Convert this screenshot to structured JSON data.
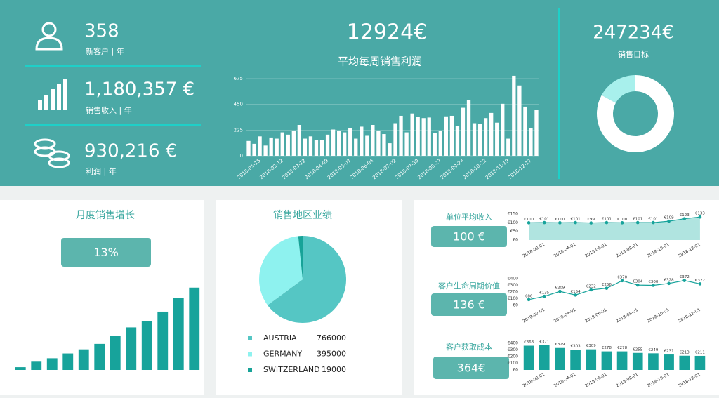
{
  "kpis": [
    {
      "value": "358",
      "label": "新客户 | 年"
    },
    {
      "value": "1,180,357 €",
      "label": "销售收入 | 年"
    },
    {
      "value": "930,216 €",
      "label": "利润 | 年"
    }
  ],
  "chart_data": [
    {
      "type": "bar",
      "headline": "12924€",
      "title": "平均每周销售利润",
      "categories": [
        null,
        null,
        "2018-01-15",
        null,
        null,
        null,
        "2018-02-12",
        null,
        null,
        null,
        "2018-03-12",
        null,
        null,
        null,
        "2018-04-09",
        null,
        null,
        null,
        "2018-05-07",
        null,
        null,
        null,
        "2018-06-04",
        null,
        null,
        null,
        "2018-07-02",
        null,
        null,
        null,
        "2018-07-30",
        null,
        null,
        null,
        "2018-08-27",
        null,
        null,
        null,
        "2018-09-24",
        null,
        null,
        null,
        "2018-10-22",
        null,
        null,
        null,
        "2018-11-19",
        null,
        null,
        null,
        "2018-12-17",
        null
      ],
      "values": [
        130,
        105,
        170,
        90,
        160,
        150,
        205,
        185,
        215,
        270,
        150,
        170,
        140,
        140,
        185,
        230,
        220,
        205,
        240,
        150,
        255,
        175,
        270,
        220,
        190,
        110,
        285,
        350,
        205,
        370,
        340,
        330,
        335,
        200,
        215,
        345,
        350,
        260,
        420,
        490,
        285,
        280,
        330,
        375,
        290,
        455,
        150,
        700,
        615,
        430,
        245,
        405
      ],
      "color": "#ffffff",
      "ylim": [
        0,
        675
      ],
      "yticks": [
        0,
        225,
        450,
        675
      ],
      "grid": true
    },
    {
      "type": "donut",
      "headline": "247234€",
      "title": "销售目标",
      "values": [
        83,
        17
      ],
      "colors": [
        "#ffffff",
        "#a8f0ec"
      ]
    },
    {
      "type": "bar",
      "title": "月度销售增长",
      "headline": "13%",
      "values": [
        4,
        12,
        17,
        24,
        30,
        38,
        50,
        62,
        71,
        85,
        105,
        120
      ],
      "color": "#17a39b",
      "ylim": [
        0,
        130
      ]
    },
    {
      "type": "pie",
      "title": "销售地区业绩",
      "categories": [
        "AUSTRIA",
        "GERMANY",
        "SWITZERLAND"
      ],
      "values": [
        766000,
        395000,
        19000
      ],
      "colors": [
        "#55c6c4",
        "#8ef2ef",
        "#17a398"
      ],
      "legend": "bottom"
    },
    {
      "type": "area",
      "title": "单位平均收入",
      "headline": "100 €",
      "categories": [
        null,
        "2018-02-01",
        null,
        "2018-04-01",
        null,
        "2018-06-01",
        null,
        "2018-08-01",
        null,
        "2018-10-01",
        null,
        "2018-12-01"
      ],
      "values": [
        100,
        101,
        100,
        101,
        99,
        101,
        100,
        101,
        101,
        109,
        123,
        133
      ],
      "value_labels": [
        "€100",
        "€101",
        "€100",
        "€101",
        "€99",
        "€101",
        "€100",
        "€101",
        "€101",
        "€109",
        "€123",
        "€133"
      ],
      "color": "#17a39b",
      "ylim": [
        0,
        150
      ],
      "yticks": [
        {
          "value": 0,
          "label": "€0"
        },
        {
          "value": 50,
          "label": "€50"
        },
        {
          "value": 100,
          "label": "€100"
        },
        {
          "value": 150,
          "label": "€150"
        }
      ]
    },
    {
      "type": "line",
      "title": "客户生命周期价值",
      "headline": "136 €",
      "categories": [
        null,
        "2018-02-01",
        null,
        "2018-04-01",
        null,
        "2018-06-01",
        null,
        "2018-08-01",
        null,
        "2018-10-01",
        null,
        "2018-12-01"
      ],
      "values": [
        86,
        135,
        209,
        154,
        232,
        256,
        370,
        304,
        300,
        328,
        372,
        322
      ],
      "value_labels": [
        "€86",
        "€135",
        "€209",
        "€154",
        "€232",
        "€256",
        "€370",
        "€304",
        "€300",
        "€328",
        "€372",
        "€322"
      ],
      "color": "#17a39b",
      "ylim": [
        0,
        400
      ],
      "yticks": [
        {
          "value": 0,
          "label": "€0"
        },
        {
          "value": 100,
          "label": "€100"
        },
        {
          "value": 200,
          "label": "€200"
        },
        {
          "value": 300,
          "label": "€300"
        },
        {
          "value": 400,
          "label": "€400"
        }
      ]
    },
    {
      "type": "bar",
      "title": "客户获取成本",
      "headline": "364€",
      "categories": [
        null,
        "2018-02-01",
        null,
        "2018-04-01",
        null,
        "2018-06-01",
        null,
        "2018-08-01",
        null,
        "2018-10-01",
        null,
        "2018-12-01"
      ],
      "values": [
        363,
        371,
        329,
        303,
        309,
        278,
        278,
        255,
        249,
        231,
        213,
        211
      ],
      "value_labels": [
        "€363",
        "€371",
        "€329",
        "€303",
        "€309",
        "€278",
        "€278",
        "€255",
        "€249",
        "€231",
        "€213",
        "€211"
      ],
      "color": "#17a39b",
      "ylim": [
        0,
        400
      ],
      "yticks": [
        {
          "value": 0,
          "label": "€0"
        },
        {
          "value": 100,
          "label": "€100"
        },
        {
          "value": 200,
          "label": "€200"
        },
        {
          "value": 300,
          "label": "€300"
        },
        {
          "value": 400,
          "label": "€400"
        }
      ]
    }
  ]
}
